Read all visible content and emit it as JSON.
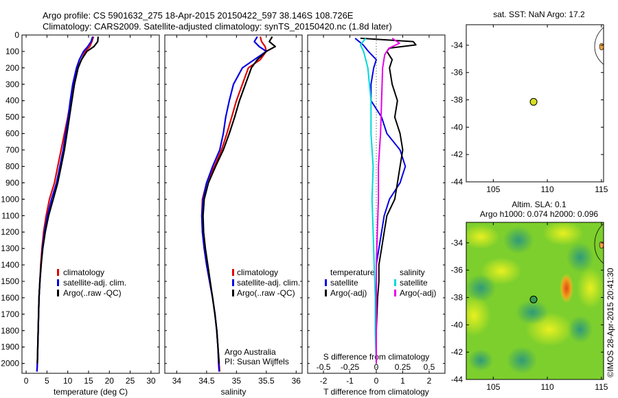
{
  "header": {
    "line1": "Argo profile: CS 5901632_275 18-Apr-2015 20150422_597 38.146S 108.726E",
    "line2": "Climatology: CARS2009. Satellite-adjusted climatology: synTS_20150420.nc (1.8d later)"
  },
  "colors": {
    "climatology": "#e00000",
    "satellite": "#0000e6",
    "argo": "#000000",
    "argo_adj_s": "#e600e6",
    "satellite_s": "#00e6e6"
  },
  "depth_axis": {
    "ticks": [
      0,
      100,
      200,
      300,
      400,
      500,
      600,
      700,
      800,
      900,
      1000,
      1100,
      1200,
      1300,
      1400,
      1500,
      1600,
      1700,
      1800,
      1900,
      2000
    ],
    "range": [
      0,
      2060
    ]
  },
  "chart_data": [
    {
      "type": "line",
      "id": "temperature",
      "xlabel": "temperature (deg C)",
      "xlim": [
        -1,
        32
      ],
      "xticks": [
        "0",
        "5",
        "10",
        "15",
        "20",
        "25",
        "30"
      ],
      "xtick_values": [
        0,
        5,
        10,
        15,
        20,
        25,
        30
      ],
      "legend": [
        "climatology",
        "satellite-adj. clim.",
        "Argo(..raw -QC)"
      ],
      "series": [
        {
          "name": "climatology",
          "color": "#e00000",
          "points": [
            [
              16.2,
              10
            ],
            [
              15.8,
              40
            ],
            [
              15.3,
              70
            ],
            [
              14.2,
              100
            ],
            [
              13.3,
              150
            ],
            [
              12.3,
              200
            ],
            [
              11.4,
              300
            ],
            [
              10.7,
              400
            ],
            [
              10,
              500
            ],
            [
              9.2,
              600
            ],
            [
              8.4,
              700
            ],
            [
              7.6,
              800
            ],
            [
              6.8,
              900
            ],
            [
              5.6,
              1000
            ],
            [
              4.8,
              1100
            ],
            [
              4.2,
              1200
            ],
            [
              3.8,
              1300
            ],
            [
              3.5,
              1400
            ],
            [
              3.3,
              1500
            ],
            [
              3.1,
              1600
            ],
            [
              3,
              1700
            ],
            [
              2.9,
              1800
            ],
            [
              2.8,
              1900
            ],
            [
              2.7,
              2000
            ],
            [
              2.6,
              2050
            ]
          ]
        },
        {
          "name": "satellite-adj. clim.",
          "color": "#0000e6",
          "points": [
            [
              16,
              10
            ],
            [
              15.6,
              40
            ],
            [
              14.8,
              70
            ],
            [
              13.8,
              100
            ],
            [
              12.8,
              150
            ],
            [
              12.1,
              200
            ],
            [
              11.2,
              300
            ],
            [
              10.6,
              400
            ],
            [
              10.1,
              500
            ],
            [
              9.5,
              600
            ],
            [
              8.9,
              700
            ],
            [
              8.1,
              800
            ],
            [
              7.3,
              900
            ],
            [
              6.1,
              1000
            ],
            [
              5.1,
              1100
            ],
            [
              4.4,
              1200
            ],
            [
              3.9,
              1300
            ],
            [
              3.6,
              1400
            ],
            [
              3.3,
              1500
            ],
            [
              3.1,
              1600
            ],
            [
              3,
              1700
            ],
            [
              2.9,
              1800
            ],
            [
              2.8,
              1900
            ],
            [
              2.7,
              2000
            ],
            [
              2.6,
              2050
            ]
          ]
        },
        {
          "name": "Argo(..raw -QC)",
          "color": "#000000",
          "points": [
            [
              17.3,
              10
            ],
            [
              17.2,
              40
            ],
            [
              16.3,
              70
            ],
            [
              14.6,
              100
            ],
            [
              13.3,
              150
            ],
            [
              12.5,
              200
            ],
            [
              11.6,
              300
            ],
            [
              11,
              400
            ],
            [
              10.4,
              500
            ],
            [
              9.8,
              600
            ],
            [
              9.2,
              700
            ],
            [
              8.4,
              800
            ],
            [
              7.6,
              900
            ],
            [
              6.5,
              1000
            ],
            [
              5.4,
              1100
            ],
            [
              4.6,
              1200
            ],
            [
              4,
              1300
            ],
            [
              3.6,
              1400
            ],
            [
              3.3,
              1500
            ],
            [
              3.1,
              1600
            ],
            [
              3,
              1700
            ],
            [
              2.9,
              1800
            ],
            [
              2.8,
              1900
            ],
            [
              2.7,
              2000
            ]
          ]
        }
      ]
    },
    {
      "type": "line",
      "id": "salinity",
      "xlabel": "salinity",
      "xlim": [
        33.8,
        36.1
      ],
      "xticks": [
        "34",
        "34.5",
        "35",
        "35.5",
        "36"
      ],
      "xtick_values": [
        34,
        34.5,
        35,
        35.5,
        36
      ],
      "legend": [
        "climatology",
        "satellite-adj. clim.",
        "Argo(..raw -QC)"
      ],
      "annotation": [
        "Argo Australia",
        "PI: Susan Wijffels"
      ],
      "series": [
        {
          "name": "climatology",
          "color": "#e00000",
          "points": [
            [
              35.4,
              10
            ],
            [
              35.42,
              40
            ],
            [
              35.48,
              70
            ],
            [
              35.5,
              100
            ],
            [
              35.4,
              150
            ],
            [
              35.2,
              200
            ],
            [
              35.1,
              300
            ],
            [
              35,
              400
            ],
            [
              34.92,
              500
            ],
            [
              34.84,
              600
            ],
            [
              34.75,
              700
            ],
            [
              34.63,
              800
            ],
            [
              34.5,
              900
            ],
            [
              34.43,
              1000
            ],
            [
              34.42,
              1100
            ],
            [
              34.43,
              1200
            ],
            [
              34.46,
              1300
            ],
            [
              34.5,
              1400
            ],
            [
              34.55,
              1500
            ],
            [
              34.6,
              1600
            ],
            [
              34.64,
              1700
            ],
            [
              34.67,
              1800
            ],
            [
              34.69,
              1900
            ],
            [
              34.71,
              2000
            ],
            [
              34.72,
              2050
            ]
          ]
        },
        {
          "name": "satellite-adj. clim.",
          "color": "#0000e6",
          "points": [
            [
              35.35,
              10
            ],
            [
              35.3,
              40
            ],
            [
              35.38,
              70
            ],
            [
              35.5,
              100
            ],
            [
              35.3,
              150
            ],
            [
              35.1,
              200
            ],
            [
              34.95,
              300
            ],
            [
              34.88,
              400
            ],
            [
              34.82,
              500
            ],
            [
              34.78,
              600
            ],
            [
              34.72,
              700
            ],
            [
              34.6,
              800
            ],
            [
              34.5,
              900
            ],
            [
              34.44,
              1000
            ],
            [
              34.42,
              1100
            ],
            [
              34.43,
              1200
            ],
            [
              34.46,
              1300
            ],
            [
              34.5,
              1400
            ],
            [
              34.55,
              1500
            ],
            [
              34.6,
              1600
            ],
            [
              34.64,
              1700
            ],
            [
              34.67,
              1800
            ],
            [
              34.69,
              1900
            ],
            [
              34.7,
              2000
            ],
            [
              34.71,
              2050
            ]
          ]
        },
        {
          "name": "Argo(..raw -QC)",
          "color": "#000000",
          "points": [
            [
              35.6,
              10
            ],
            [
              35.55,
              40
            ],
            [
              35.65,
              70
            ],
            [
              35.5,
              100
            ],
            [
              35.35,
              150
            ],
            [
              35.25,
              200
            ],
            [
              35.15,
              300
            ],
            [
              35.05,
              400
            ],
            [
              34.97,
              500
            ],
            [
              34.88,
              600
            ],
            [
              34.78,
              700
            ],
            [
              34.65,
              800
            ],
            [
              34.53,
              900
            ],
            [
              34.46,
              1000
            ],
            [
              34.44,
              1100
            ],
            [
              34.45,
              1200
            ],
            [
              34.48,
              1300
            ],
            [
              34.52,
              1400
            ],
            [
              34.56,
              1500
            ],
            [
              34.6,
              1600
            ],
            [
              34.64,
              1700
            ],
            [
              34.67,
              1800
            ],
            [
              34.69,
              1900
            ],
            [
              34.71,
              2000
            ]
          ]
        }
      ]
    },
    {
      "type": "line",
      "id": "difference",
      "xlabel": "T difference from climatology",
      "xlim": [
        -2.6,
        2.6
      ],
      "xticks": [
        "-2",
        "-1",
        "0",
        "1",
        "2"
      ],
      "xtick_values": [
        -2,
        -1,
        0,
        1,
        2
      ],
      "top_label": "S difference from climatology",
      "s_ticks": [
        "-0.5",
        "-0.25",
        "0",
        "0.25",
        "0.5"
      ],
      "s_tick_values": [
        -0.5,
        -0.25,
        0,
        0.25,
        0.5
      ],
      "legend_t_title": "temperature",
      "legend_s_title": "salinity",
      "legend_t": [
        "satellite",
        "Argo(-adj)"
      ],
      "legend_s": [
        "satellite",
        "Argo(-adj)"
      ],
      "series": [
        {
          "name": "T satellite",
          "color": "#0000e6",
          "points": [
            [
              -0.8,
              20
            ],
            [
              -0.5,
              60
            ],
            [
              -0.3,
              100
            ],
            [
              0,
              150
            ],
            [
              -0.1,
              200
            ],
            [
              -0.2,
              300
            ],
            [
              -0.2,
              400
            ],
            [
              0.2,
              500
            ],
            [
              0.4,
              600
            ],
            [
              0.9,
              700
            ],
            [
              1.1,
              800
            ],
            [
              0.9,
              900
            ],
            [
              0.5,
              1000
            ],
            [
              0.3,
              1100
            ],
            [
              0.2,
              1200
            ],
            [
              0.1,
              1300
            ],
            [
              0,
              1400
            ],
            [
              0,
              1500
            ],
            [
              0,
              1600
            ],
            [
              0,
              1800
            ],
            [
              0,
              2000
            ]
          ]
        },
        {
          "name": "T Argo(-adj)",
          "color": "#000000",
          "points": [
            [
              -0.6,
              20
            ],
            [
              1.4,
              40
            ],
            [
              1.5,
              60
            ],
            [
              0.5,
              80
            ],
            [
              0.4,
              100
            ],
            [
              0.6,
              150
            ],
            [
              0.5,
              200
            ],
            [
              0.6,
              300
            ],
            [
              0.8,
              400
            ],
            [
              0.7,
              500
            ],
            [
              0.9,
              600
            ],
            [
              1,
              700
            ],
            [
              0.9,
              800
            ],
            [
              0.8,
              900
            ],
            [
              0.7,
              1000
            ],
            [
              0.4,
              1100
            ],
            [
              0.3,
              1200
            ],
            [
              0.2,
              1300
            ],
            [
              0.1,
              1400
            ],
            [
              0.1,
              1500
            ],
            [
              0.05,
              1600
            ],
            [
              0,
              1800
            ],
            [
              0,
              2000
            ]
          ]
        },
        {
          "name": "S satellite",
          "color": "#00d8d8",
          "points": [
            [
              -0.1,
              20
            ],
            [
              -0.15,
              60
            ],
            [
              -0.12,
              100
            ],
            [
              -0.08,
              200
            ],
            [
              -0.05,
              400
            ],
            [
              -0.05,
              600
            ],
            [
              -0.03,
              800
            ],
            [
              -0.04,
              1000
            ],
            [
              -0.03,
              1200
            ],
            [
              -0.02,
              1400
            ],
            [
              -0.01,
              1600
            ],
            [
              -0.01,
              1800
            ],
            [
              0,
              2000
            ]
          ]
        },
        {
          "name": "S Argo(-adj)",
          "color": "#e600e6",
          "points": [
            [
              0.15,
              20
            ],
            [
              0.22,
              50
            ],
            [
              0.12,
              80
            ],
            [
              0.08,
              120
            ],
            [
              0.06,
              200
            ],
            [
              0.05,
              400
            ],
            [
              0.04,
              600
            ],
            [
              0.02,
              800
            ],
            [
              0.02,
              1000
            ],
            [
              0.01,
              1200
            ],
            [
              0,
              1400
            ],
            [
              0,
              1600
            ],
            [
              0,
              1800
            ],
            [
              0,
              2000
            ]
          ]
        }
      ]
    },
    {
      "type": "scatter",
      "id": "sst_map",
      "title": "sat. SST: NaN Argo: 17.2",
      "xlim": [
        102.5,
        115.2
      ],
      "ylim": [
        -44,
        -32.5
      ],
      "xticks": [
        "105",
        "110",
        "115"
      ],
      "xtick_values": [
        105,
        110,
        115
      ],
      "yticks": [
        "-34",
        "-36",
        "-38",
        "-40",
        "-42",
        "-44"
      ],
      "ytick_values": [
        -34,
        -36,
        -38,
        -40,
        -42,
        -44
      ],
      "points": [
        {
          "lon": 108.726,
          "lat": -38.146
        }
      ]
    },
    {
      "type": "heatmap",
      "id": "sla_map",
      "title_line1": "Altim. SLA: 0.1",
      "title_line2": "Argo h1000: 0.074 h2000: 0.096",
      "xlim": [
        102.5,
        115.2
      ],
      "ylim": [
        -44,
        -32.5
      ],
      "xticks": [
        "105",
        "110",
        "115"
      ],
      "xtick_values": [
        105,
        110,
        115
      ],
      "yticks": [
        "-34",
        "-36",
        "-38",
        "-40",
        "-42",
        "-44"
      ],
      "ytick_values": [
        -34,
        -36,
        -38,
        -40,
        -42,
        -44
      ],
      "points": [
        {
          "lon": 108.726,
          "lat": -38.146
        }
      ],
      "side_label": "©IMOS 28-Apr-2015 20:41:30"
    }
  ]
}
